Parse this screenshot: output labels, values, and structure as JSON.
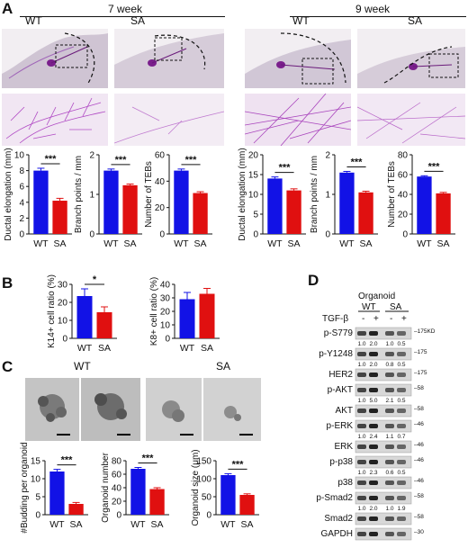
{
  "panels": {
    "A": {
      "letter": "A",
      "week7": "7 week",
      "week9": "9 week",
      "wt": "WT",
      "sa": "SA"
    },
    "B": {
      "letter": "B"
    },
    "C": {
      "letter": "C",
      "wt": "WT",
      "sa": "SA"
    },
    "D": {
      "letter": "D",
      "organoid": "Organoid",
      "wt": "WT",
      "sa": "SA",
      "tgf": "TGF-β",
      "minus": "-",
      "plus": "+"
    }
  },
  "colors": {
    "wt": "#1212e6",
    "sa": "#e01010",
    "stain": "#c77ad6"
  },
  "chart_data": [
    {
      "id": "a7-duct",
      "type": "bar",
      "categories": [
        "WT",
        "SA"
      ],
      "values": [
        8.0,
        4.2
      ],
      "errors": [
        0.3,
        0.3
      ],
      "ylabel": "Ductal elongation (mm)",
      "ylim": [
        0,
        10
      ],
      "yticks": [
        "0",
        "2",
        "4",
        "6",
        "8",
        "10"
      ],
      "sig": "***"
    },
    {
      "id": "a7-branch",
      "type": "bar",
      "categories": [
        "WT",
        "SA"
      ],
      "values": [
        1.6,
        1.23
      ],
      "errors": [
        0.04,
        0.03
      ],
      "ylabel": "Branch points / mm",
      "ylim": [
        0,
        2
      ],
      "yticks": [
        "0",
        "1",
        "2"
      ],
      "sig": "***"
    },
    {
      "id": "a7-teb",
      "type": "bar",
      "categories": [
        "WT",
        "SA"
      ],
      "values": [
        48,
        31
      ],
      "errors": [
        1.2,
        1.0
      ],
      "ylabel": "Number of TEBs",
      "ylim": [
        0,
        60
      ],
      "yticks": [
        "0",
        "20",
        "40",
        "60"
      ],
      "sig": "***"
    },
    {
      "id": "a9-duct",
      "type": "bar",
      "categories": [
        "WT",
        "SA"
      ],
      "values": [
        14,
        11
      ],
      "errors": [
        0.4,
        0.4
      ],
      "ylabel": "Ductal elongation (mm)",
      "ylim": [
        0,
        20
      ],
      "yticks": [
        "0",
        "5",
        "10",
        "15",
        "20"
      ],
      "sig": "***"
    },
    {
      "id": "a9-branch",
      "type": "bar",
      "categories": [
        "WT",
        "SA"
      ],
      "values": [
        1.55,
        1.05
      ],
      "errors": [
        0.03,
        0.03
      ],
      "ylabel": "Branch points / mm",
      "ylim": [
        0,
        2
      ],
      "yticks": [
        "0",
        "1",
        "2"
      ],
      "sig": "***"
    },
    {
      "id": "a9-teb",
      "type": "bar",
      "categories": [
        "WT",
        "SA"
      ],
      "values": [
        58,
        41
      ],
      "errors": [
        0.8,
        1.0
      ],
      "ylabel": "Number of TEBs",
      "ylim": [
        0,
        80
      ],
      "yticks": [
        "0",
        "20",
        "40",
        "60",
        "80"
      ],
      "sig": "***"
    },
    {
      "id": "b-k14",
      "type": "bar",
      "categories": [
        "WT",
        "SA"
      ],
      "values": [
        23.5,
        14.5
      ],
      "errors": [
        4,
        3
      ],
      "ylabel": "K14+ cell ratio (%)",
      "ylim": [
        0,
        30
      ],
      "yticks": [
        "0",
        "10",
        "20",
        "30"
      ],
      "sig": "*"
    },
    {
      "id": "b-k8",
      "type": "bar",
      "categories": [
        "WT",
        "SA"
      ],
      "values": [
        29,
        33
      ],
      "errors": [
        5,
        4
      ],
      "ylabel": "K8+ cell ratio (%)",
      "ylim": [
        0,
        40
      ],
      "yticks": [
        "0",
        "10",
        "20",
        "30",
        "40"
      ],
      "sig": ""
    },
    {
      "id": "c-bud",
      "type": "bar",
      "categories": [
        "WT",
        "SA"
      ],
      "values": [
        12,
        3
      ],
      "errors": [
        0.6,
        0.4
      ],
      "ylabel": "#Budding per organoid",
      "ylim": [
        0,
        15
      ],
      "yticks": [
        "0",
        "5",
        "10",
        "15"
      ],
      "sig": "***"
    },
    {
      "id": "c-num",
      "type": "bar",
      "categories": [
        "WT",
        "SA"
      ],
      "values": [
        68,
        38
      ],
      "errors": [
        2,
        2
      ],
      "ylabel": "Organoid number",
      "ylim": [
        0,
        80
      ],
      "yticks": [
        "0",
        "20",
        "40",
        "60",
        "80"
      ],
      "sig": "***"
    },
    {
      "id": "c-size",
      "type": "bar",
      "categories": [
        "WT",
        "SA"
      ],
      "values": [
        110,
        55
      ],
      "errors": [
        4,
        3
      ],
      "ylabel": "Organoid size (μm)",
      "ylim": [
        0,
        150
      ],
      "yticks": [
        "0",
        "50",
        "100",
        "150"
      ],
      "sig": "***"
    }
  ],
  "blot": {
    "rows": [
      {
        "label": "p-S779",
        "kd": "175KD",
        "nums": [
          "1.0",
          "2.0",
          "1.0",
          "0.5"
        ]
      },
      {
        "label": "p-Y1248",
        "kd": "175",
        "nums": [
          "1.0",
          "2.0",
          "0.8",
          "0.5"
        ]
      },
      {
        "label": "HER2",
        "kd": "175",
        "nums": []
      },
      {
        "label": "p-AKT",
        "kd": "58",
        "nums": [
          "1.0",
          "5.0",
          "2.1",
          "0.5"
        ]
      },
      {
        "label": "AKT",
        "kd": "58",
        "nums": []
      },
      {
        "label": "p-ERK",
        "kd": "46",
        "nums": [
          "1.0",
          "2.4",
          "1.1",
          "0.7"
        ]
      },
      {
        "label": "ERK",
        "kd": "46",
        "nums": []
      },
      {
        "label": "p-p38",
        "kd": "46",
        "nums": [
          "1.0",
          "2.3",
          "0.6",
          "0.5"
        ]
      },
      {
        "label": "p38",
        "kd": "46",
        "nums": []
      },
      {
        "label": "p-Smad2",
        "kd": "58",
        "nums": [
          "1.0",
          "2.0",
          "1.0",
          "1.9"
        ]
      },
      {
        "label": "Smad2",
        "kd": "58",
        "nums": []
      },
      {
        "label": "GAPDH",
        "kd": "30",
        "nums": []
      }
    ]
  }
}
